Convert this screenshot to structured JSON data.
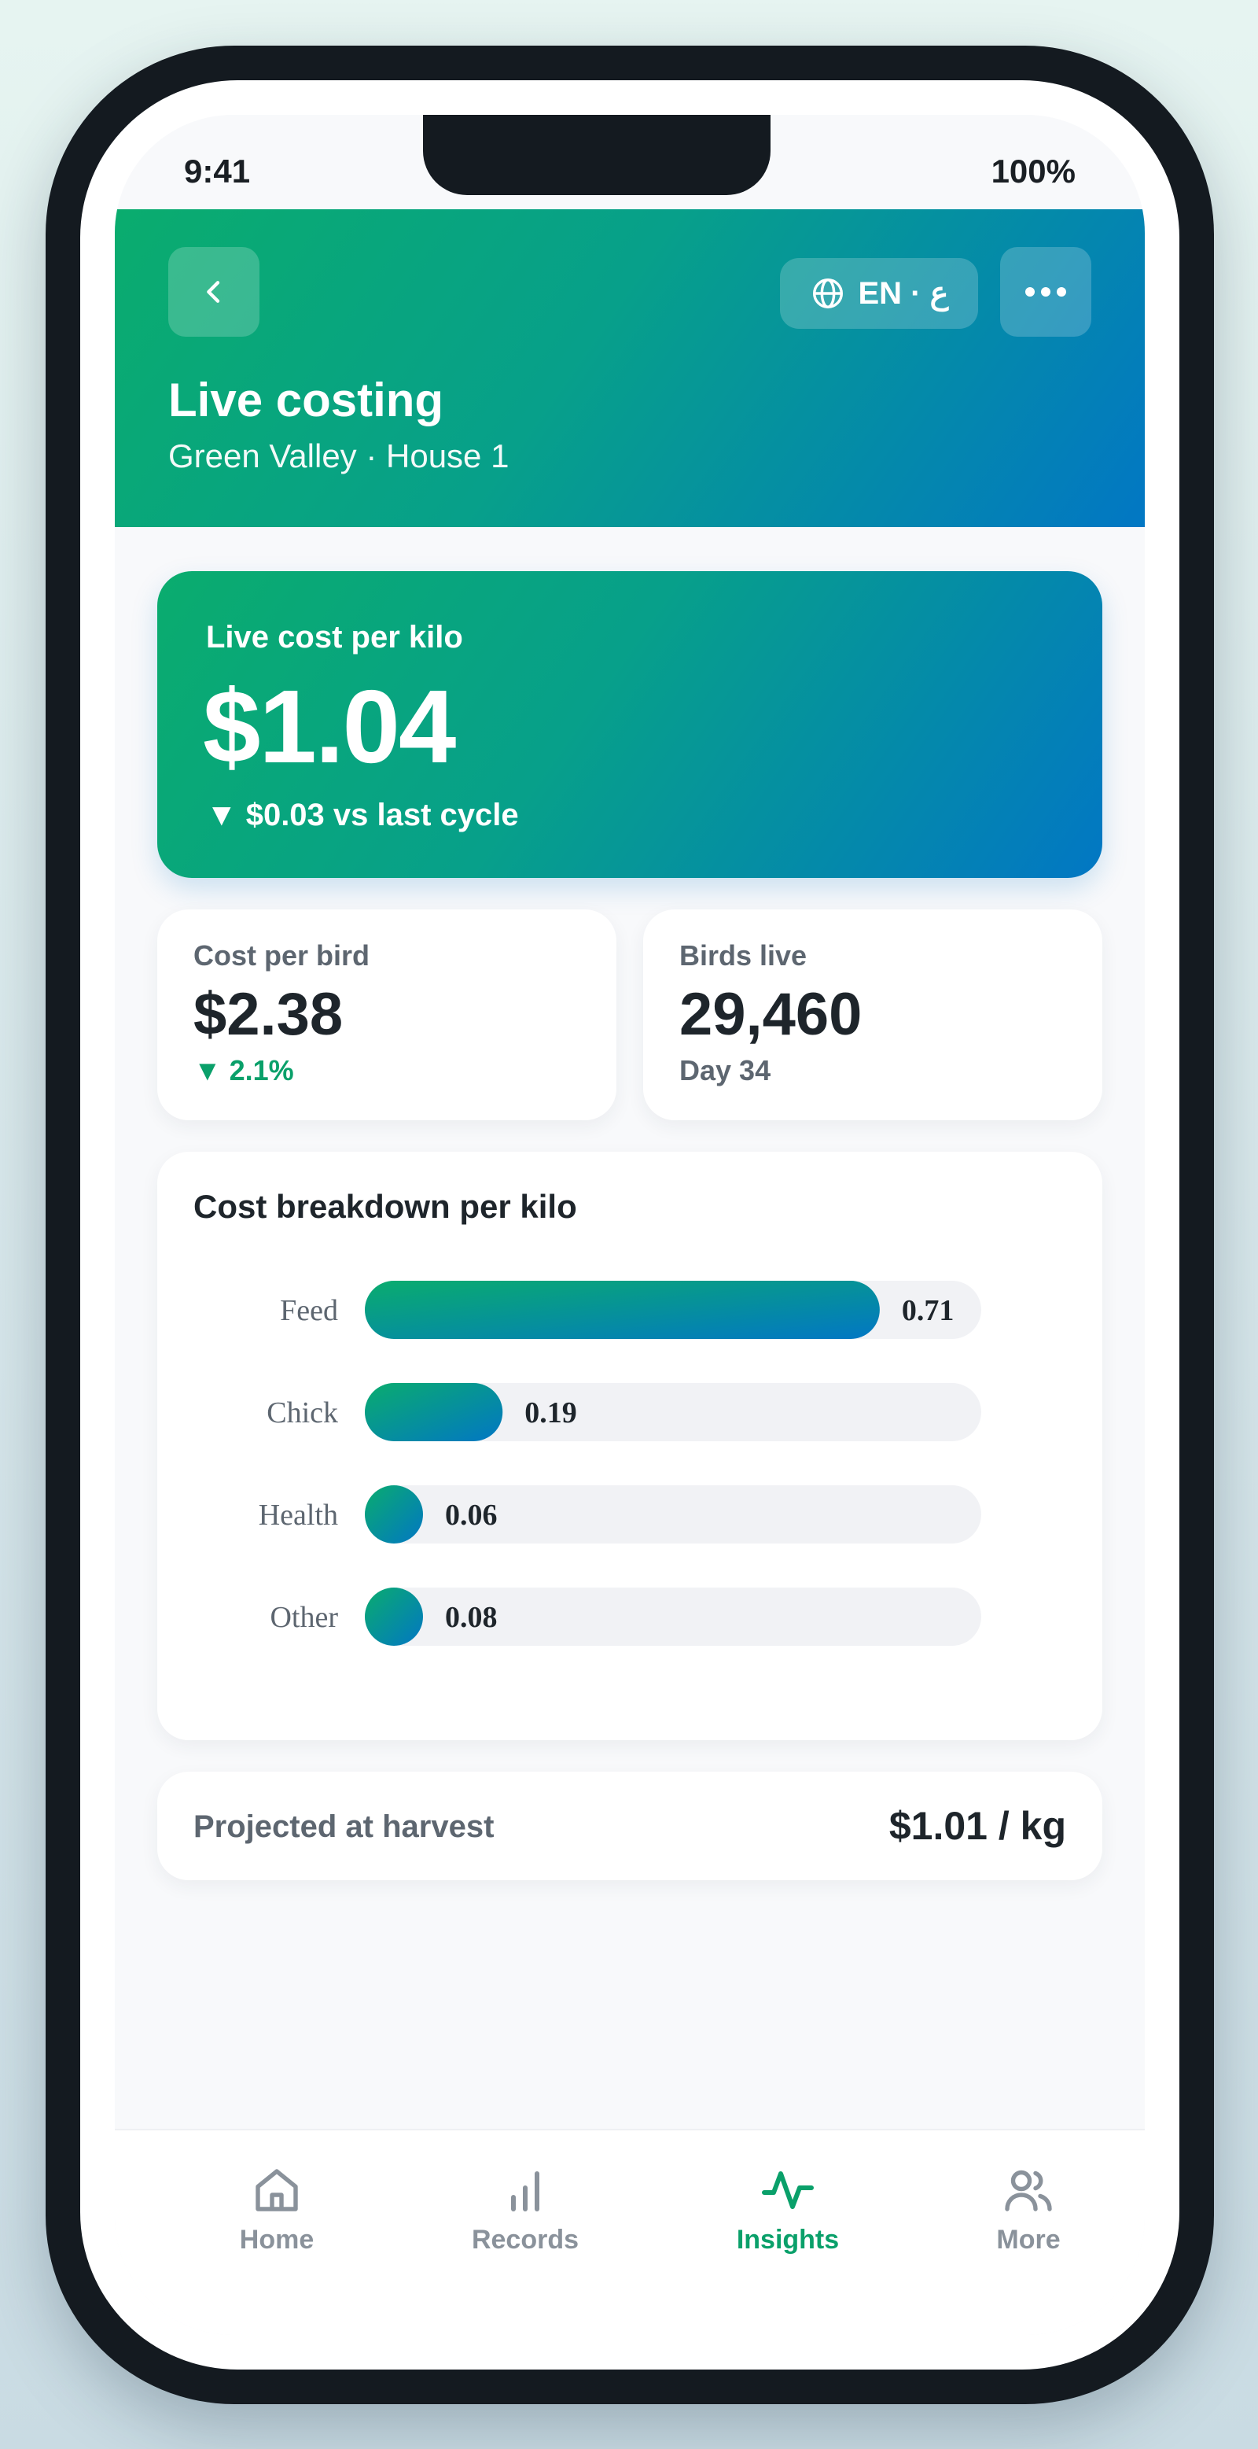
{
  "status": {
    "time": "9:41",
    "battery": "100%"
  },
  "header": {
    "title": "Live costing",
    "subtitle": "Green Valley · House 1",
    "language": "EN · ع"
  },
  "hero": {
    "label": "Live cost per kilo",
    "value": "$1.04",
    "delta": "▼ $0.03 vs last cycle"
  },
  "stats": [
    {
      "label": "Cost per bird",
      "value": "$2.38",
      "sub": "▼ 2.1%"
    },
    {
      "label": "Birds live",
      "value": "29,460",
      "sub": "Day 34"
    }
  ],
  "breakdown": {
    "title": "Cost breakdown per kilo"
  },
  "chart_data": {
    "type": "bar",
    "orientation": "horizontal",
    "title": "Cost breakdown per kilo",
    "categories": [
      "Feed",
      "Chick",
      "Health",
      "Other"
    ],
    "values": [
      0.71,
      0.19,
      0.06,
      0.08
    ],
    "value_labels": [
      "0.71",
      "0.19",
      "0.06",
      "0.08"
    ],
    "xlim": [
      0,
      0.85
    ],
    "grid": false
  },
  "projected": {
    "label": "Projected at harvest",
    "value": "$1.01 / kg"
  },
  "tabs": [
    {
      "label": "Home",
      "icon": "home-icon",
      "active": false
    },
    {
      "label": "Records",
      "icon": "bar-chart-icon",
      "active": false
    },
    {
      "label": "Insights",
      "icon": "pulse-icon",
      "active": true
    },
    {
      "label": "More",
      "icon": "users-icon",
      "active": false
    }
  ],
  "colors": {
    "brand_green": "#0aac6e",
    "brand_blue": "#0277c4",
    "positive": "#0aa06a",
    "track": "#f1f2f5"
  }
}
